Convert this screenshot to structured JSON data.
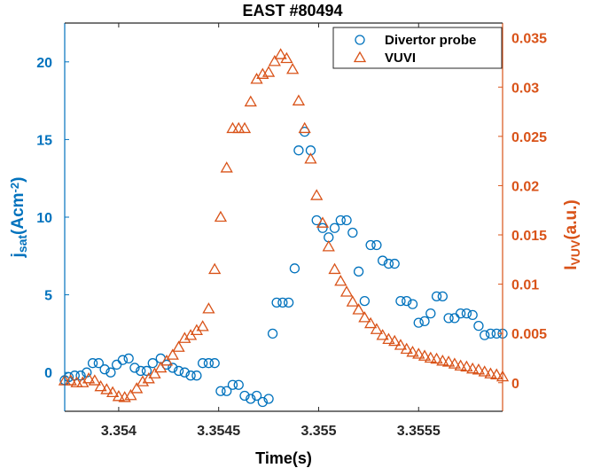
{
  "chart_data": {
    "type": "scatter",
    "title": "EAST #80494",
    "xlabel": "Time(s)",
    "ylabel_left": "j_sat(Acm^-2)",
    "ylabel_right": "I_VUV(a.u.)",
    "xlim": [
      3.35373,
      3.35592
    ],
    "ylim_left": [
      -2.5,
      22.5
    ],
    "ylim_right": [
      -0.0029,
      0.0365
    ],
    "x_ticks": [
      3.354,
      3.3545,
      3.355,
      3.3555
    ],
    "x_tick_labels": [
      "3.354",
      "3.3545",
      "3.355",
      "3.3555"
    ],
    "y_left_ticks": [
      0,
      5,
      10,
      15,
      20
    ],
    "y_left_tick_labels": [
      "0",
      "5",
      "10",
      "15",
      "20"
    ],
    "y_right_ticks": [
      0,
      0.005,
      0.01,
      0.015,
      0.02,
      0.025,
      0.03,
      0.035
    ],
    "y_right_tick_labels": [
      "0",
      "0.005",
      "0.01",
      "0.015",
      "0.02",
      "0.025",
      "0.03",
      "0.035"
    ],
    "legend_position": "top-right",
    "colors": {
      "left_axis": "#0072BD",
      "right_axis": "#D95319"
    },
    "series": [
      {
        "name": "Divertor probe",
        "axis": "left",
        "marker": "circle",
        "color": "#0072BD",
        "points": [
          [
            3.35373,
            -0.5
          ],
          [
            3.35375,
            -0.3
          ],
          [
            3.35378,
            -0.2
          ],
          [
            3.35381,
            -0.2
          ],
          [
            3.35384,
            0.0
          ],
          [
            3.35387,
            0.6
          ],
          [
            3.3539,
            0.6
          ],
          [
            3.35393,
            0.2
          ],
          [
            3.35396,
            0.0
          ],
          [
            3.35399,
            0.5
          ],
          [
            3.35402,
            0.8
          ],
          [
            3.35405,
            0.9
          ],
          [
            3.35408,
            0.3
          ],
          [
            3.35411,
            0.1
          ],
          [
            3.35414,
            0.1
          ],
          [
            3.35417,
            0.6
          ],
          [
            3.35421,
            0.9
          ],
          [
            3.35424,
            0.5
          ],
          [
            3.35427,
            0.3
          ],
          [
            3.3543,
            0.1
          ],
          [
            3.35433,
            0.0
          ],
          [
            3.35436,
            -0.2
          ],
          [
            3.35439,
            -0.2
          ],
          [
            3.35442,
            0.6
          ],
          [
            3.35445,
            0.6
          ],
          [
            3.35448,
            0.6
          ],
          [
            3.35451,
            -1.2
          ],
          [
            3.35454,
            -1.2
          ],
          [
            3.35457,
            -0.8
          ],
          [
            3.3546,
            -0.8
          ],
          [
            3.35463,
            -1.5
          ],
          [
            3.35466,
            -1.7
          ],
          [
            3.35469,
            -1.5
          ],
          [
            3.35472,
            -1.9
          ],
          [
            3.35475,
            -1.7
          ],
          [
            3.35477,
            2.5
          ],
          [
            3.35479,
            4.5
          ],
          [
            3.35482,
            4.5
          ],
          [
            3.35485,
            4.5
          ],
          [
            3.35488,
            6.7
          ],
          [
            3.3549,
            14.3
          ],
          [
            3.35493,
            15.5
          ],
          [
            3.35496,
            14.3
          ],
          [
            3.35499,
            9.8
          ],
          [
            3.35502,
            9.3
          ],
          [
            3.35505,
            8.7
          ],
          [
            3.35508,
            9.3
          ],
          [
            3.35511,
            9.8
          ],
          [
            3.35514,
            9.8
          ],
          [
            3.35517,
            9.0
          ],
          [
            3.3552,
            6.5
          ],
          [
            3.35523,
            4.6
          ],
          [
            3.35526,
            8.2
          ],
          [
            3.35529,
            8.2
          ],
          [
            3.35532,
            7.2
          ],
          [
            3.35535,
            7.0
          ],
          [
            3.35538,
            7.0
          ],
          [
            3.35541,
            4.6
          ],
          [
            3.35544,
            4.6
          ],
          [
            3.35547,
            4.4
          ],
          [
            3.3555,
            3.2
          ],
          [
            3.35553,
            3.3
          ],
          [
            3.35556,
            3.8
          ],
          [
            3.35559,
            4.9
          ],
          [
            3.35562,
            4.9
          ],
          [
            3.35565,
            3.5
          ],
          [
            3.35568,
            3.5
          ],
          [
            3.35571,
            3.8
          ],
          [
            3.35574,
            3.8
          ],
          [
            3.35577,
            3.7
          ],
          [
            3.3558,
            3.0
          ],
          [
            3.35583,
            2.4
          ],
          [
            3.35586,
            2.5
          ],
          [
            3.35589,
            2.5
          ],
          [
            3.35592,
            2.5
          ]
        ]
      },
      {
        "name": "VUVI",
        "axis": "right",
        "marker": "triangle",
        "color": "#D95319",
        "points": [
          [
            3.35373,
            0.0002
          ],
          [
            3.35376,
            0.0002
          ],
          [
            3.35379,
            0.0
          ],
          [
            3.35382,
            0.0
          ],
          [
            3.35385,
            0.0004
          ],
          [
            3.35388,
            0.0002
          ],
          [
            3.35391,
            -0.0004
          ],
          [
            3.35394,
            -0.0007
          ],
          [
            3.35397,
            -0.001
          ],
          [
            3.354,
            -0.0014
          ],
          [
            3.35403,
            -0.0015
          ],
          [
            3.35406,
            -0.0013
          ],
          [
            3.35409,
            -0.0006
          ],
          [
            3.35412,
            0.0001
          ],
          [
            3.35415,
            0.0004
          ],
          [
            3.35418,
            0.0009
          ],
          [
            3.35421,
            0.0015
          ],
          [
            3.35424,
            0.0022
          ],
          [
            3.35427,
            0.0028
          ],
          [
            3.3543,
            0.0036
          ],
          [
            3.35433,
            0.0045
          ],
          [
            3.35436,
            0.0048
          ],
          [
            3.35439,
            0.0053
          ],
          [
            3.35442,
            0.0057
          ],
          [
            3.35445,
            0.0075
          ],
          [
            3.35448,
            0.0115
          ],
          [
            3.35451,
            0.0168
          ],
          [
            3.35454,
            0.0218
          ],
          [
            3.35457,
            0.0258
          ],
          [
            3.3546,
            0.0258
          ],
          [
            3.35463,
            0.0258
          ],
          [
            3.35466,
            0.0285
          ],
          [
            3.35469,
            0.0308
          ],
          [
            3.35472,
            0.0313
          ],
          [
            3.35475,
            0.0315
          ],
          [
            3.35478,
            0.0326
          ],
          [
            3.35481,
            0.0333
          ],
          [
            3.35484,
            0.0329
          ],
          [
            3.35487,
            0.0318
          ],
          [
            3.3549,
            0.0286
          ],
          [
            3.35493,
            0.0258
          ],
          [
            3.35496,
            0.0227
          ],
          [
            3.35499,
            0.019
          ],
          [
            3.35502,
            0.0162
          ],
          [
            3.35505,
            0.0138
          ],
          [
            3.35508,
            0.0115
          ],
          [
            3.35511,
            0.0103
          ],
          [
            3.35514,
            0.0092
          ],
          [
            3.35517,
            0.0082
          ],
          [
            3.3552,
            0.0074
          ],
          [
            3.35523,
            0.0066
          ],
          [
            3.35526,
            0.006
          ],
          [
            3.35529,
            0.0054
          ],
          [
            3.35532,
            0.0048
          ],
          [
            3.35535,
            0.0044
          ],
          [
            3.35538,
            0.0042
          ],
          [
            3.35541,
            0.0038
          ],
          [
            3.35544,
            0.0034
          ],
          [
            3.35547,
            0.0031
          ],
          [
            3.3555,
            0.0029
          ],
          [
            3.35553,
            0.0027
          ],
          [
            3.35556,
            0.0025
          ],
          [
            3.35559,
            0.0024
          ],
          [
            3.35562,
            0.0022
          ],
          [
            3.35565,
            0.0021
          ],
          [
            3.35568,
            0.0019
          ],
          [
            3.35571,
            0.0017
          ],
          [
            3.35574,
            0.0016
          ],
          [
            3.35577,
            0.0014
          ],
          [
            3.3558,
            0.0013
          ],
          [
            3.35583,
            0.0011
          ],
          [
            3.35586,
            0.0009
          ],
          [
            3.35589,
            0.0008
          ],
          [
            3.35592,
            0.0006
          ]
        ]
      }
    ]
  }
}
